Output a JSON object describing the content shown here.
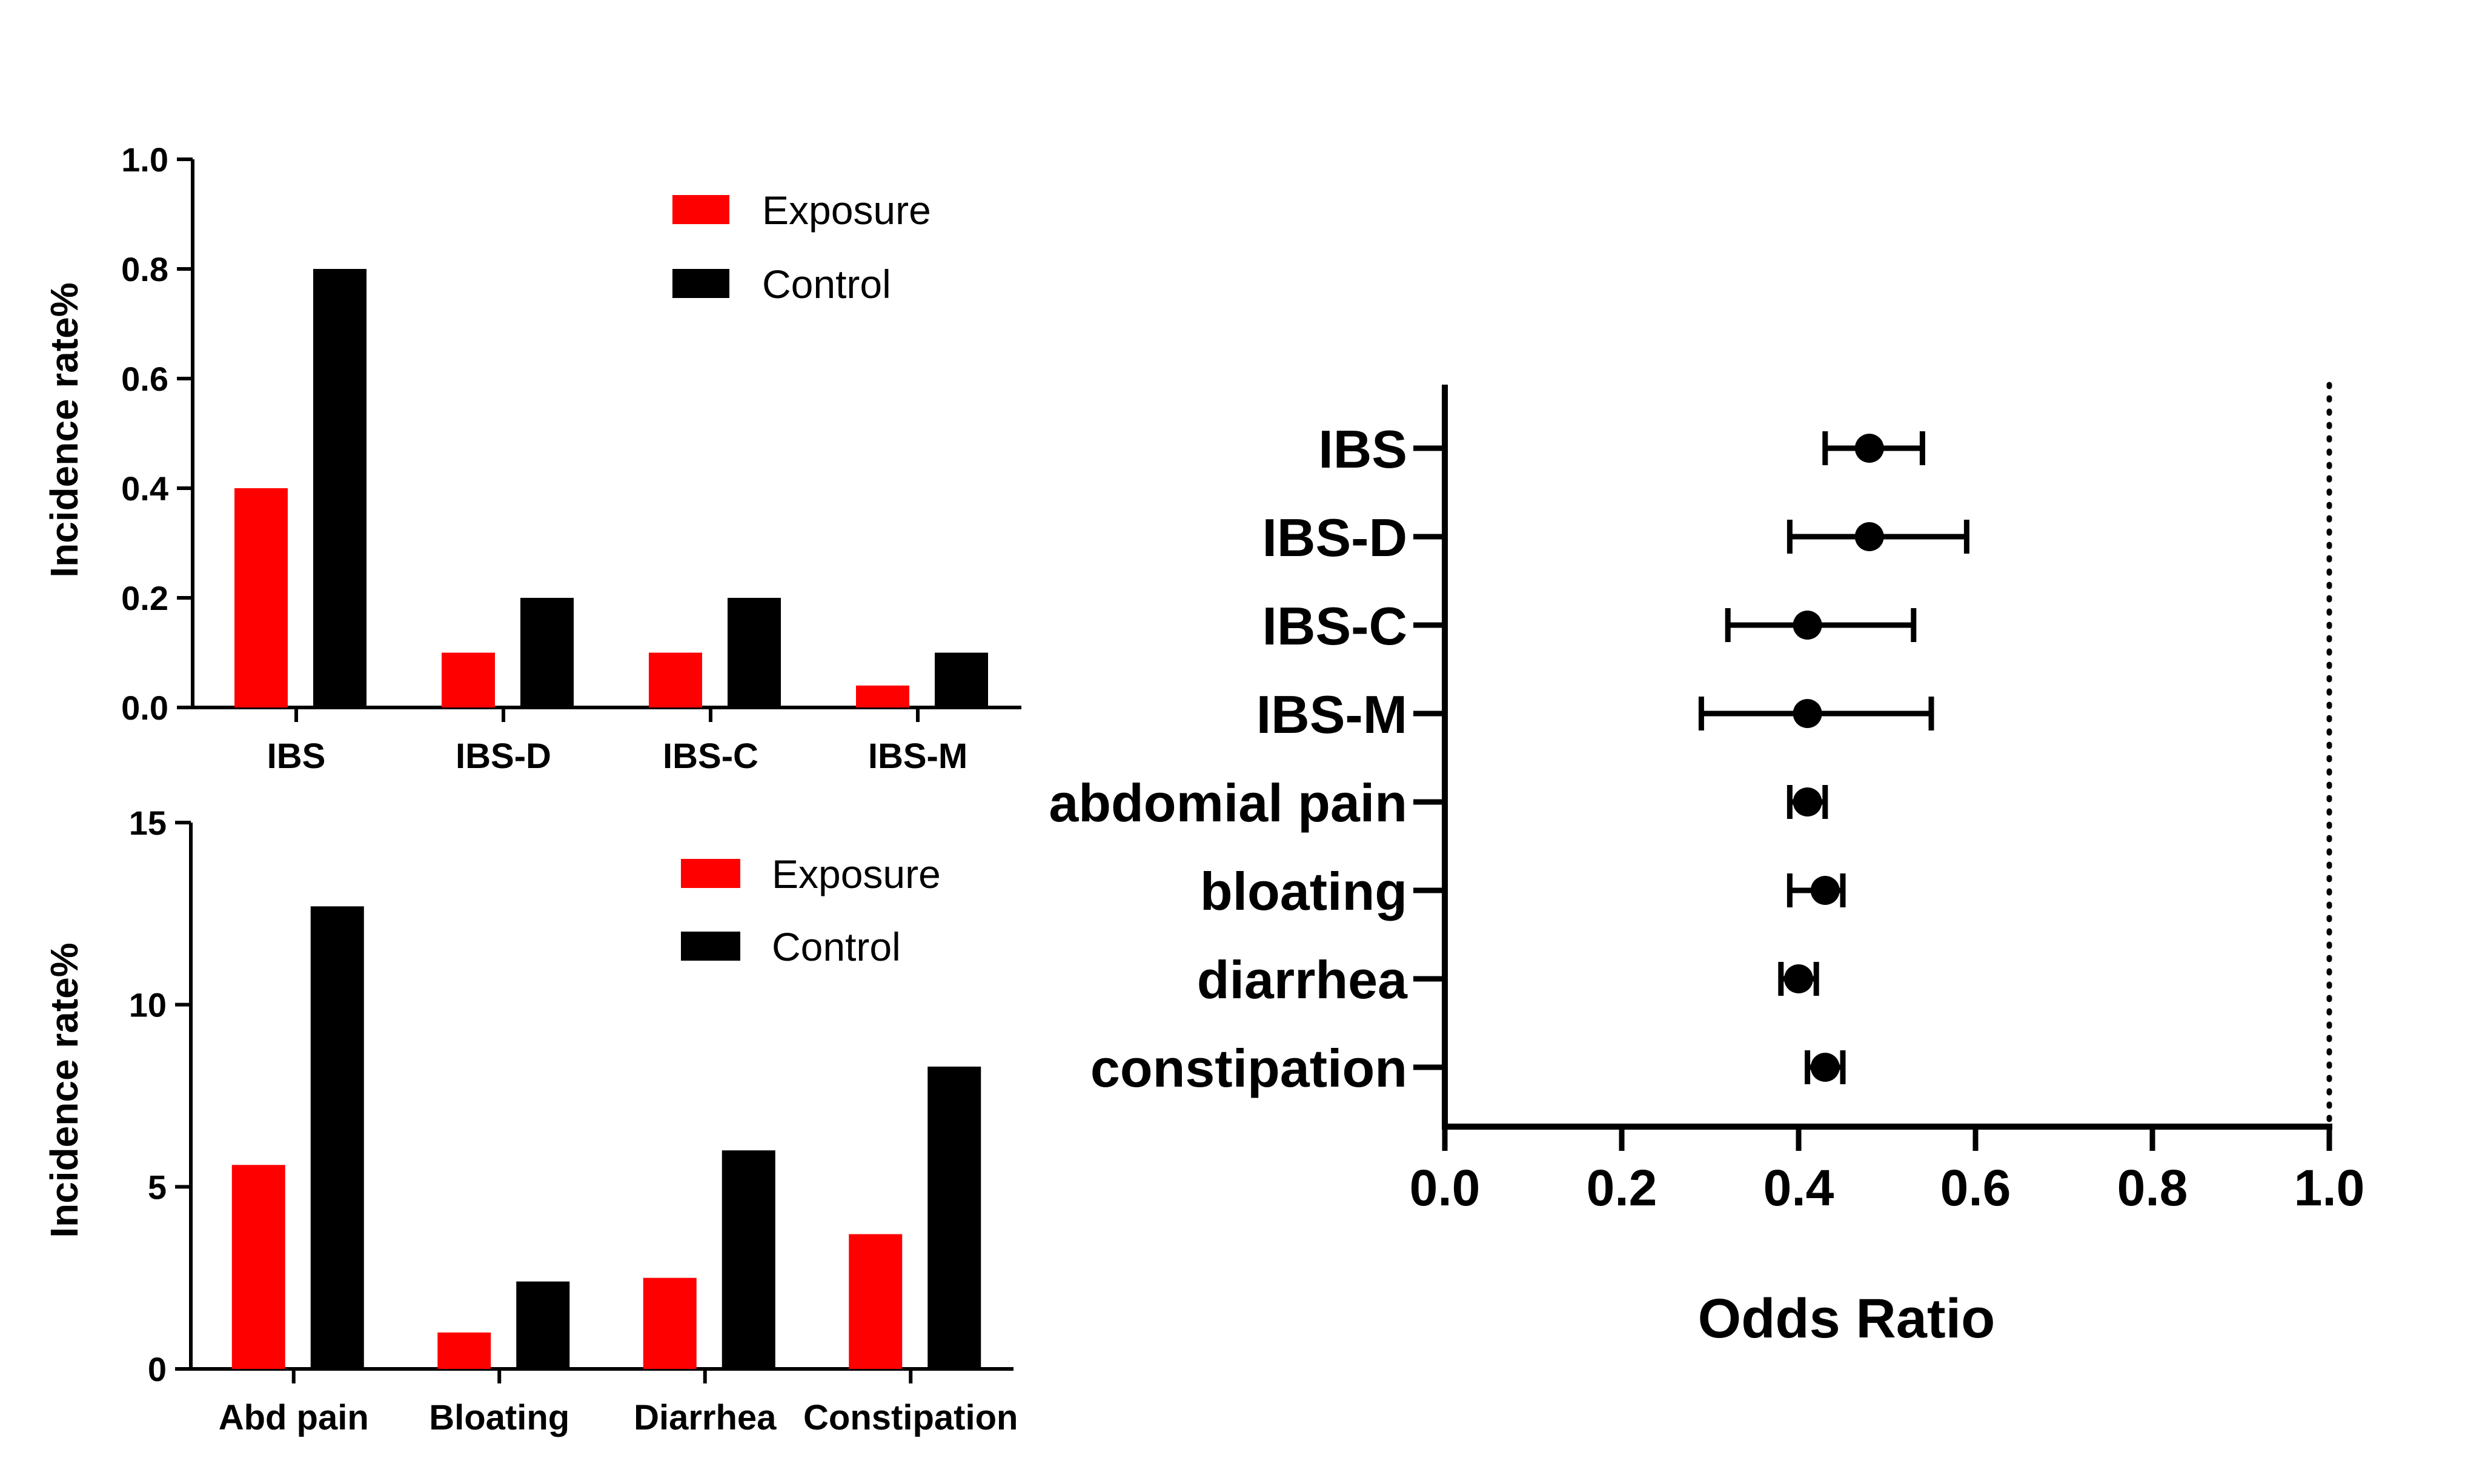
{
  "chart_data": [
    {
      "type": "bar",
      "ylabel": "Incidence rate%",
      "ylim": [
        0,
        1.0
      ],
      "yticks": [
        "0.0",
        "0.2",
        "0.4",
        "0.6",
        "0.8",
        "1.0"
      ],
      "categories": [
        "IBS",
        "IBS-D",
        "IBS-C",
        "IBS-M"
      ],
      "series": [
        {
          "name": "Exposure",
          "color": "#ff0000",
          "values": [
            0.4,
            0.1,
            0.1,
            0.04
          ]
        },
        {
          "name": "Control",
          "color": "#000000",
          "values": [
            0.8,
            0.2,
            0.2,
            0.1
          ]
        }
      ],
      "legend": "top-right",
      "grid": false
    },
    {
      "type": "bar",
      "ylabel": "Incidence rate%",
      "ylim": [
        0,
        15
      ],
      "yticks": [
        "0",
        "5",
        "10",
        "15"
      ],
      "categories": [
        "Abd pain",
        "Bloating",
        "Diarrhea",
        "Constipation"
      ],
      "series": [
        {
          "name": "Exposure",
          "color": "#ff0000",
          "values": [
            5.6,
            1.0,
            2.5,
            3.7
          ]
        },
        {
          "name": "Control",
          "color": "#000000",
          "values": [
            12.7,
            2.4,
            6.0,
            8.3
          ]
        }
      ],
      "legend": "top-right",
      "grid": false
    },
    {
      "type": "scatter",
      "subtype": "forest",
      "xlabel": "Odds Ratio",
      "xlim": [
        0,
        1.0
      ],
      "xticks": [
        "0.0",
        "0.2",
        "0.4",
        "0.6",
        "0.8",
        "1.0"
      ],
      "reference_line": 1.0,
      "categories": [
        "IBS",
        "IBS-D",
        "IBS-C",
        "IBS-M",
        "abdomial pain",
        "bloating",
        "diarrhea",
        "constipation"
      ],
      "or": [
        0.48,
        0.48,
        0.41,
        0.41,
        0.41,
        0.43,
        0.4,
        0.43
      ],
      "ci_low": [
        0.43,
        0.39,
        0.32,
        0.29,
        0.39,
        0.39,
        0.38,
        0.41
      ],
      "ci_high": [
        0.54,
        0.59,
        0.53,
        0.55,
        0.43,
        0.45,
        0.42,
        0.45
      ],
      "grid": false
    }
  ]
}
